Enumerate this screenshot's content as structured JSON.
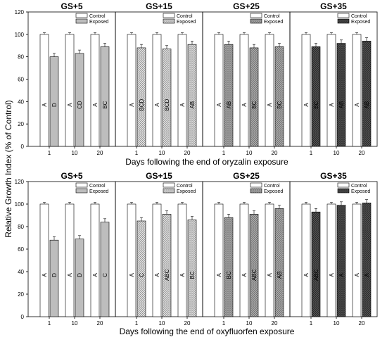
{
  "figure": {
    "ylabel": "Relative Growth Index (% of Control)",
    "legend": {
      "control": "Control",
      "exposed": "Exposed"
    },
    "colors": {
      "control": "#ffffff",
      "exposed_gs5": "#bdbdbd",
      "exposed_gs15": "crosshatch-light",
      "exposed_gs25": "crosshatch-grey",
      "exposed_gs35": "crosshatch-dark"
    }
  },
  "chart_data": [
    {
      "type": "bar",
      "xlabel": "Days following the end of oryzalin exposure",
      "ylim": [
        0,
        120
      ],
      "yticks": [
        0,
        20,
        40,
        60,
        80,
        100,
        120
      ],
      "categories": [
        "1",
        "10",
        "20"
      ],
      "panels": [
        {
          "title": "GS+5",
          "series": [
            {
              "name": "Control",
              "values": [
                100,
                100,
                100
              ],
              "letters": [
                "A",
                "A",
                "A"
              ]
            },
            {
              "name": "Exposed",
              "values": [
                80,
                83,
                89
              ],
              "letters": [
                "D",
                "CD",
                "BC"
              ]
            }
          ]
        },
        {
          "title": "GS+15",
          "series": [
            {
              "name": "Control",
              "values": [
                100,
                100,
                100
              ],
              "letters": [
                "A",
                "A",
                "A"
              ]
            },
            {
              "name": "Exposed",
              "values": [
                88,
                87,
                91
              ],
              "letters": [
                "BCD",
                "BCD",
                "AB"
              ]
            }
          ]
        },
        {
          "title": "GS+25",
          "series": [
            {
              "name": "Control",
              "values": [
                100,
                100,
                100
              ],
              "letters": [
                "A",
                "A",
                "A"
              ]
            },
            {
              "name": "Exposed",
              "values": [
                91,
                88,
                89
              ],
              "letters": [
                "AB",
                "BC",
                "BC"
              ]
            }
          ]
        },
        {
          "title": "GS+35",
          "series": [
            {
              "name": "Control",
              "values": [
                100,
                100,
                100
              ],
              "letters": [
                "A",
                "A",
                "A"
              ]
            },
            {
              "name": "Exposed",
              "values": [
                89,
                92,
                94
              ],
              "letters": [
                "BC",
                "AB",
                "AB"
              ]
            }
          ]
        }
      ]
    },
    {
      "type": "bar",
      "xlabel": "Days following the end of oxyfluorfen exposure",
      "ylim": [
        0,
        120
      ],
      "yticks": [
        0,
        20,
        40,
        60,
        80,
        100,
        120
      ],
      "categories": [
        "1",
        "10",
        "20"
      ],
      "panels": [
        {
          "title": "GS+5",
          "series": [
            {
              "name": "Control",
              "values": [
                100,
                100,
                100
              ],
              "letters": [
                "A",
                "A",
                "A"
              ]
            },
            {
              "name": "Exposed",
              "values": [
                68,
                69,
                84
              ],
              "letters": [
                "D",
                "D",
                "C"
              ]
            }
          ]
        },
        {
          "title": "GS+15",
          "series": [
            {
              "name": "Control",
              "values": [
                100,
                100,
                100
              ],
              "letters": [
                "A",
                "A",
                "A"
              ]
            },
            {
              "name": "Exposed",
              "values": [
                85,
                91,
                86
              ],
              "letters": [
                "C",
                "ABC",
                "BC"
              ]
            }
          ]
        },
        {
          "title": "GS+25",
          "series": [
            {
              "name": "Control",
              "values": [
                100,
                100,
                100
              ],
              "letters": [
                "A",
                "A",
                "A"
              ]
            },
            {
              "name": "Exposed",
              "values": [
                88,
                91,
                96
              ],
              "letters": [
                "BC",
                "ABC",
                "AB"
              ]
            }
          ]
        },
        {
          "title": "GS+35",
          "series": [
            {
              "name": "Control",
              "values": [
                100,
                100,
                100
              ],
              "letters": [
                "A",
                "A",
                "A"
              ]
            },
            {
              "name": "Exposed",
              "values": [
                93,
                99,
                101
              ],
              "letters": [
                "ABC",
                "A",
                "A"
              ]
            }
          ]
        }
      ]
    }
  ]
}
